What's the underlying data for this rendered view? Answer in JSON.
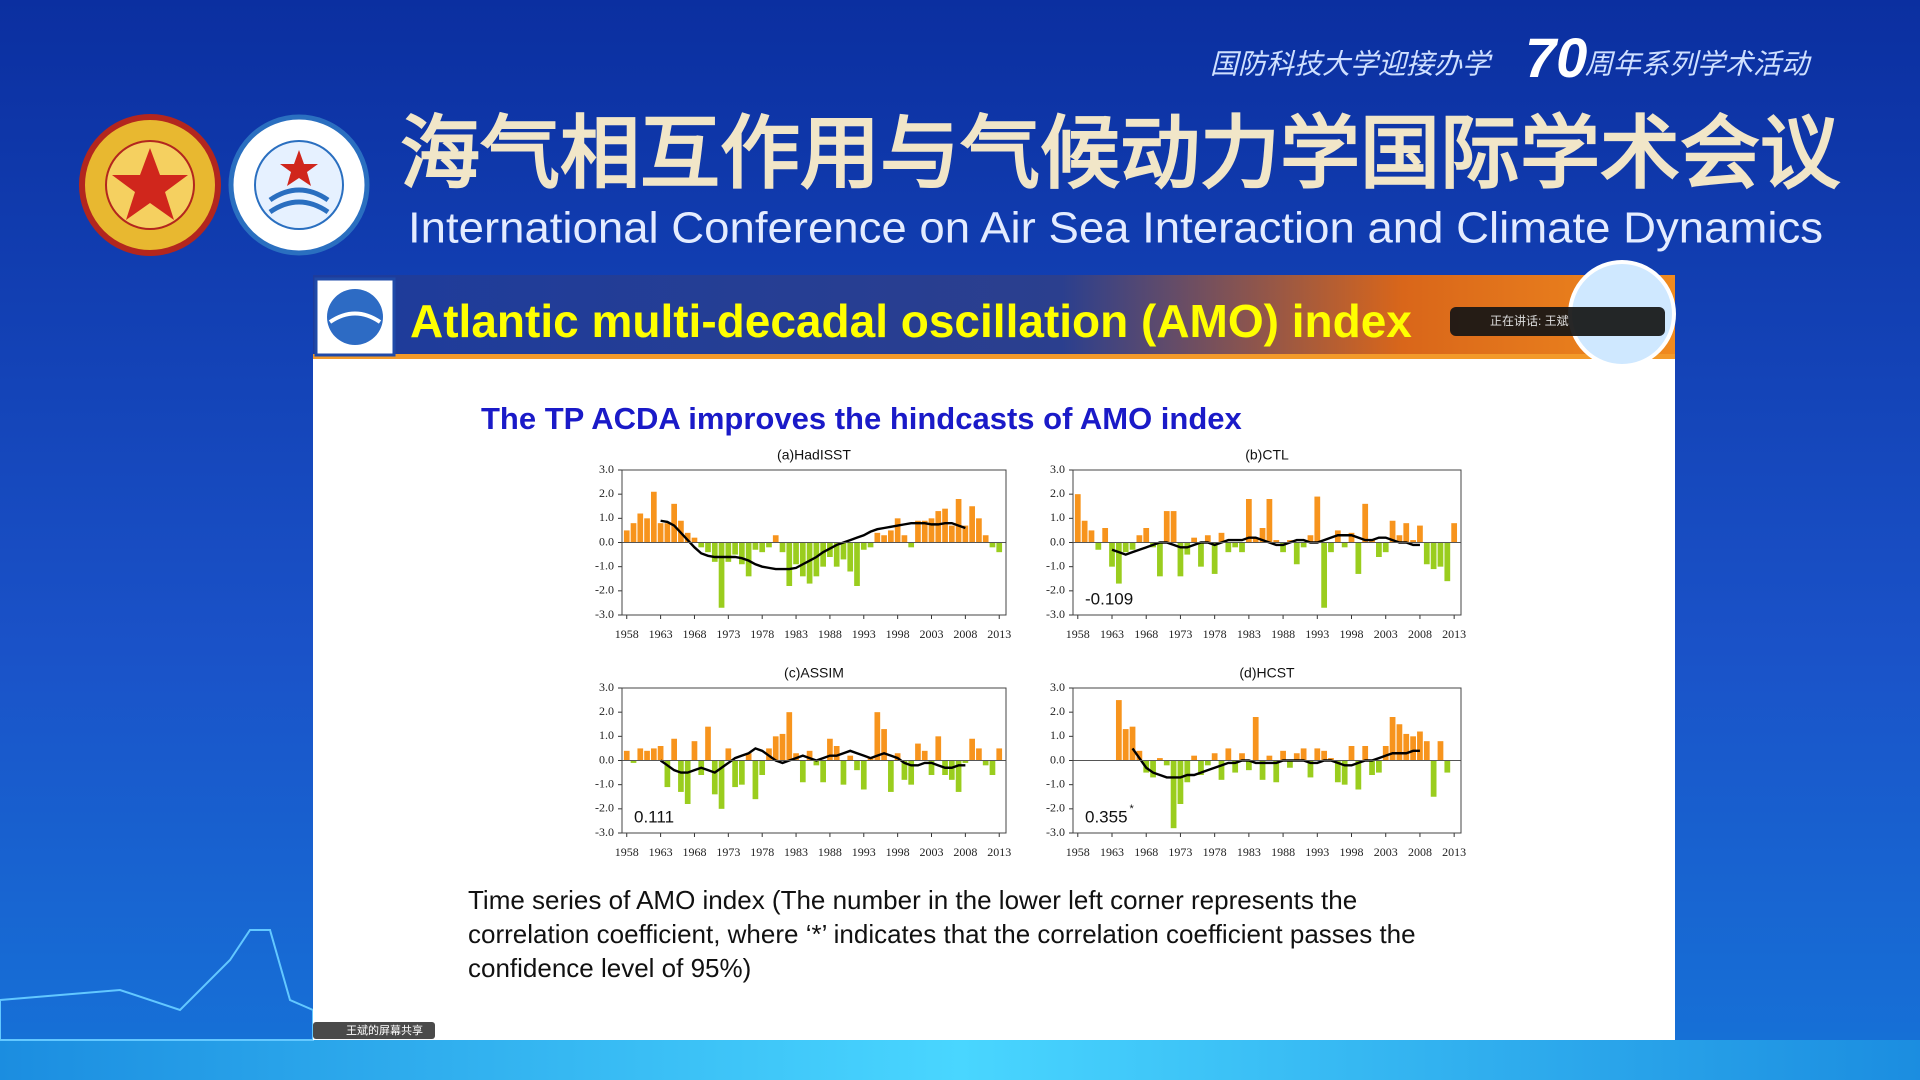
{
  "header": {
    "banner": [
      "国防科技大学迎接办学",
      "70",
      "周年系列学术活动"
    ],
    "title_cn": "海气相互作用与气候动力学国际学术会议",
    "title_en": "International Conference on Air Sea Interaction and Climate Dynamics"
  },
  "slide": {
    "title": "Atlantic multi-decadal oscillation (AMO) index",
    "speaking_label": "正在讲话: 王斌",
    "subtitle": "The TP ACDA improves the hindcasts of AMO index",
    "caption": [
      "Time series of AMO index (The number in the lower left corner represents the",
      "correlation coefficient, where ‘*’ indicates that the correlation coefficient passes the",
      "confidence level of 95%)"
    ],
    "share_label": "王斌的屏幕共享"
  },
  "chart_data": [
    {
      "type": "bar",
      "title": "(a)HadISST",
      "x": [
        1958,
        1959,
        1960,
        1961,
        1962,
        1963,
        1964,
        1965,
        1966,
        1967,
        1968,
        1969,
        1970,
        1971,
        1972,
        1973,
        1974,
        1975,
        1976,
        1977,
        1978,
        1979,
        1980,
        1981,
        1982,
        1983,
        1984,
        1985,
        1986,
        1987,
        1988,
        1989,
        1990,
        1991,
        1992,
        1993,
        1994,
        1995,
        1996,
        1997,
        1998,
        1999,
        2000,
        2001,
        2002,
        2003,
        2004,
        2005,
        2006,
        2007,
        2008,
        2009,
        2010,
        2011,
        2012,
        2013
      ],
      "series": [
        {
          "type": "bar",
          "color": "#f7941d",
          "negative_color": "#9acd1e",
          "values": [
            0.5,
            0.8,
            1.2,
            1.0,
            2.1,
            0.8,
            0.8,
            1.6,
            0.9,
            0.4,
            0.2,
            -0.2,
            -0.4,
            -0.8,
            -2.7,
            -0.8,
            -0.5,
            -0.9,
            -1.4,
            -0.3,
            -0.4,
            -0.2,
            0.3,
            -0.4,
            -1.8,
            -0.9,
            -1.4,
            -1.7,
            -1.4,
            -1.0,
            -0.6,
            -1.0,
            -0.7,
            -1.2,
            -1.8,
            -0.3,
            -0.2,
            0.4,
            0.3,
            0.5,
            1.0,
            0.3,
            -0.2,
            0.9,
            0.9,
            1.0,
            1.3,
            1.4,
            0.7,
            1.8,
            0.7,
            1.5,
            1.0,
            0.3,
            -0.2,
            -0.4
          ]
        },
        {
          "type": "line",
          "color": "#000000",
          "values": [
            null,
            null,
            null,
            null,
            null,
            0.9,
            0.85,
            0.7,
            0.4,
            0.1,
            -0.2,
            -0.45,
            -0.55,
            -0.6,
            -0.6,
            -0.6,
            -0.6,
            -0.65,
            -0.75,
            -0.9,
            -1.0,
            -1.05,
            -1.1,
            -1.1,
            -1.1,
            -1.05,
            -0.9,
            -0.75,
            -0.6,
            -0.4,
            -0.25,
            -0.1,
            0.0,
            0.1,
            0.2,
            0.3,
            0.45,
            0.55,
            0.6,
            0.65,
            0.7,
            0.75,
            0.8,
            0.8,
            0.8,
            0.75,
            0.75,
            0.8,
            0.8,
            0.7,
            0.6,
            null,
            null,
            null,
            null,
            null
          ]
        }
      ],
      "xlim": [
        1957.3,
        2014
      ],
      "xticks": [
        1958,
        1963,
        1968,
        1973,
        1978,
        1983,
        1988,
        1993,
        1998,
        2003,
        2008,
        2013
      ],
      "ylim": [
        -3,
        3
      ],
      "yticks": [
        {
          "value": 3,
          "label": "3.0"
        },
        {
          "value": 2,
          "label": "2.0"
        },
        {
          "value": 1,
          "label": "1.0"
        },
        {
          "value": 0,
          "label": "0.0"
        },
        {
          "value": -1,
          "label": "-1.0"
        },
        {
          "value": -2,
          "label": "-2.0"
        },
        {
          "value": -3,
          "label": "-3.0"
        }
      ]
    },
    {
      "type": "bar",
      "title": "(b)CTL",
      "annotation": "-0.109",
      "x": [
        1958,
        1959,
        1960,
        1961,
        1962,
        1963,
        1964,
        1965,
        1966,
        1967,
        1968,
        1969,
        1970,
        1971,
        1972,
        1973,
        1974,
        1975,
        1976,
        1977,
        1978,
        1979,
        1980,
        1981,
        1982,
        1983,
        1984,
        1985,
        1986,
        1987,
        1988,
        1989,
        1990,
        1991,
        1992,
        1993,
        1994,
        1995,
        1996,
        1997,
        1998,
        1999,
        2000,
        2001,
        2002,
        2003,
        2004,
        2005,
        2006,
        2007,
        2008,
        2009,
        2010,
        2011,
        2012,
        2013
      ],
      "series": [
        {
          "type": "bar",
          "color": "#f7941d",
          "negative_color": "#9acd1e",
          "values": [
            2.0,
            0.9,
            0.5,
            -0.3,
            0.6,
            -1.0,
            -1.7,
            -0.4,
            -0.3,
            0.3,
            0.6,
            -0.2,
            -1.4,
            1.3,
            1.3,
            -1.4,
            -0.5,
            0.2,
            -1.0,
            0.3,
            -1.3,
            0.4,
            -0.4,
            -0.2,
            -0.4,
            1.8,
            0.2,
            0.6,
            1.8,
            0.1,
            -0.4,
            0.1,
            -0.9,
            -0.2,
            0.3,
            1.9,
            -2.7,
            -0.4,
            0.5,
            -0.2,
            0.4,
            -1.3,
            1.6,
            0.1,
            -0.6,
            -0.4,
            0.9,
            0.3,
            0.8,
            0.1,
            0.7,
            -0.9,
            -1.1,
            -1.0,
            -1.6,
            0.8
          ]
        },
        {
          "type": "line",
          "color": "#000000",
          "values": [
            null,
            null,
            null,
            null,
            null,
            -0.3,
            -0.4,
            -0.5,
            -0.4,
            -0.3,
            -0.2,
            -0.1,
            0.0,
            0.0,
            -0.1,
            -0.2,
            -0.2,
            -0.1,
            0.0,
            0.0,
            -0.1,
            0.0,
            0.1,
            0.1,
            0.1,
            0.2,
            0.2,
            0.1,
            0.0,
            -0.1,
            -0.1,
            0.0,
            0.1,
            0.1,
            0.0,
            0.0,
            0.1,
            0.2,
            0.3,
            0.3,
            0.3,
            0.2,
            0.1,
            0.1,
            0.2,
            0.2,
            0.1,
            0.0,
            0.0,
            -0.1,
            -0.1,
            null,
            null,
            null,
            null,
            null
          ]
        }
      ],
      "xlim": [
        1957.3,
        2014
      ],
      "xticks": [
        1958,
        1963,
        1968,
        1973,
        1978,
        1983,
        1988,
        1993,
        1998,
        2003,
        2008,
        2013
      ],
      "ylim": [
        -3,
        3
      ],
      "yticks": [
        {
          "value": 3,
          "label": "3.0"
        },
        {
          "value": 2,
          "label": "2.0"
        },
        {
          "value": 1,
          "label": "1.0"
        },
        {
          "value": 0,
          "label": "0.0"
        },
        {
          "value": -1,
          "label": "-1.0"
        },
        {
          "value": -2,
          "label": "-2.0"
        },
        {
          "value": -3,
          "label": "-3.0"
        }
      ]
    },
    {
      "type": "bar",
      "title": "(c)ASSIM",
      "annotation": "0.111",
      "x": [
        1958,
        1959,
        1960,
        1961,
        1962,
        1963,
        1964,
        1965,
        1966,
        1967,
        1968,
        1969,
        1970,
        1971,
        1972,
        1973,
        1974,
        1975,
        1976,
        1977,
        1978,
        1979,
        1980,
        1981,
        1982,
        1983,
        1984,
        1985,
        1986,
        1987,
        1988,
        1989,
        1990,
        1991,
        1992,
        1993,
        1994,
        1995,
        1996,
        1997,
        1998,
        1999,
        2000,
        2001,
        2002,
        2003,
        2004,
        2005,
        2006,
        2007,
        2008,
        2009,
        2010,
        2011,
        2012,
        2013
      ],
      "series": [
        {
          "type": "bar",
          "color": "#f7941d",
          "negative_color": "#9acd1e",
          "values": [
            0.4,
            -0.1,
            0.5,
            0.4,
            0.5,
            0.6,
            -1.1,
            0.9,
            -1.3,
            -1.8,
            0.8,
            -0.6,
            1.4,
            -1.4,
            -2.0,
            0.5,
            -1.1,
            -1.0,
            0.3,
            -1.6,
            -0.6,
            0.5,
            1.0,
            1.1,
            2.0,
            0.3,
            -0.9,
            0.4,
            -0.2,
            -0.9,
            0.9,
            0.6,
            -1.0,
            0.2,
            -0.4,
            -1.2,
            0.1,
            2.0,
            1.3,
            -1.3,
            0.3,
            -0.8,
            -1.0,
            0.7,
            0.4,
            -0.6,
            1.0,
            -0.6,
            -0.8,
            -1.3,
            -0.1,
            0.9,
            0.5,
            -0.2,
            -0.6,
            0.5
          ]
        },
        {
          "type": "line",
          "color": "#000000",
          "values": [
            null,
            null,
            null,
            null,
            null,
            0.0,
            -0.2,
            -0.4,
            -0.5,
            -0.5,
            -0.4,
            -0.3,
            -0.4,
            -0.5,
            -0.3,
            -0.1,
            0.1,
            0.2,
            0.3,
            0.5,
            0.4,
            0.2,
            0.0,
            -0.1,
            0.0,
            0.1,
            0.2,
            0.1,
            0.0,
            0.1,
            0.2,
            0.2,
            0.3,
            0.4,
            0.3,
            0.2,
            0.1,
            0.2,
            0.3,
            0.2,
            0.1,
            -0.1,
            -0.2,
            -0.2,
            -0.1,
            -0.1,
            -0.2,
            -0.3,
            -0.3,
            -0.2,
            -0.2,
            null,
            null,
            null,
            null,
            null
          ]
        }
      ],
      "xlim": [
        1957.3,
        2014
      ],
      "xticks": [
        1958,
        1963,
        1968,
        1973,
        1978,
        1983,
        1988,
        1993,
        1998,
        2003,
        2008,
        2013
      ],
      "ylim": [
        -3,
        3
      ],
      "yticks": [
        {
          "value": 3,
          "label": "3.0"
        },
        {
          "value": 2,
          "label": "2.0"
        },
        {
          "value": 1,
          "label": "1.0"
        },
        {
          "value": 0,
          "label": "0.0"
        },
        {
          "value": -1,
          "label": "-1.0"
        },
        {
          "value": -2,
          "label": "-2.0"
        },
        {
          "value": -3,
          "label": "-3.0"
        }
      ]
    },
    {
      "type": "bar",
      "title": "(d)HCST",
      "annotation": "0.355",
      "annotation_mark": "*",
      "x": [
        1958,
        1959,
        1960,
        1961,
        1962,
        1963,
        1964,
        1965,
        1966,
        1967,
        1968,
        1969,
        1970,
        1971,
        1972,
        1973,
        1974,
        1975,
        1976,
        1977,
        1978,
        1979,
        1980,
        1981,
        1982,
        1983,
        1984,
        1985,
        1986,
        1987,
        1988,
        1989,
        1990,
        1991,
        1992,
        1993,
        1994,
        1995,
        1996,
        1997,
        1998,
        1999,
        2000,
        2001,
        2002,
        2003,
        2004,
        2005,
        2006,
        2007,
        2008,
        2009,
        2010,
        2011,
        2012,
        2013
      ],
      "series": [
        {
          "type": "bar",
          "color": "#f7941d",
          "negative_color": "#9acd1e",
          "values": [
            null,
            null,
            null,
            null,
            null,
            null,
            2.5,
            1.3,
            1.4,
            0.4,
            -0.5,
            -0.7,
            0.1,
            -0.2,
            -2.8,
            -1.8,
            -0.9,
            0.2,
            -0.6,
            -0.2,
            0.3,
            -0.8,
            0.5,
            -0.5,
            0.3,
            -0.4,
            1.8,
            -0.8,
            0.2,
            -0.9,
            0.4,
            -0.3,
            0.3,
            0.5,
            -0.7,
            0.5,
            0.4,
            0.1,
            -0.9,
            -1.0,
            0.6,
            -1.2,
            0.6,
            -0.6,
            -0.5,
            0.6,
            1.8,
            1.5,
            1.1,
            1.0,
            1.2,
            0.8,
            -1.5,
            0.8,
            -0.5,
            null
          ]
        },
        {
          "type": "line",
          "color": "#000000",
          "values": [
            null,
            null,
            null,
            null,
            null,
            null,
            null,
            null,
            0.5,
            0.1,
            -0.3,
            -0.5,
            -0.6,
            -0.7,
            -0.7,
            -0.7,
            -0.6,
            -0.6,
            -0.5,
            -0.4,
            -0.3,
            -0.2,
            -0.1,
            -0.1,
            0.0,
            0.0,
            -0.1,
            -0.1,
            -0.1,
            -0.1,
            0.0,
            0.0,
            0.0,
            0.0,
            -0.1,
            -0.1,
            0.0,
            0.0,
            -0.1,
            -0.2,
            -0.2,
            -0.1,
            0.0,
            0.0,
            0.1,
            0.2,
            0.3,
            0.3,
            0.3,
            0.4,
            0.4,
            null,
            null,
            null,
            null,
            null
          ]
        }
      ],
      "xlim": [
        1957.3,
        2014
      ],
      "xticks": [
        1958,
        1963,
        1968,
        1973,
        1978,
        1983,
        1988,
        1993,
        1998,
        2003,
        2008,
        2013
      ],
      "ylim": [
        -3,
        3
      ],
      "yticks": [
        {
          "value": 3,
          "label": "3.0"
        },
        {
          "value": 2,
          "label": "2.0"
        },
        {
          "value": 1,
          "label": "1.0"
        },
        {
          "value": 0,
          "label": "0.0"
        },
        {
          "value": -1,
          "label": "-1.0"
        },
        {
          "value": -2,
          "label": "-2.0"
        },
        {
          "value": -3,
          "label": "-3.0"
        }
      ]
    }
  ]
}
